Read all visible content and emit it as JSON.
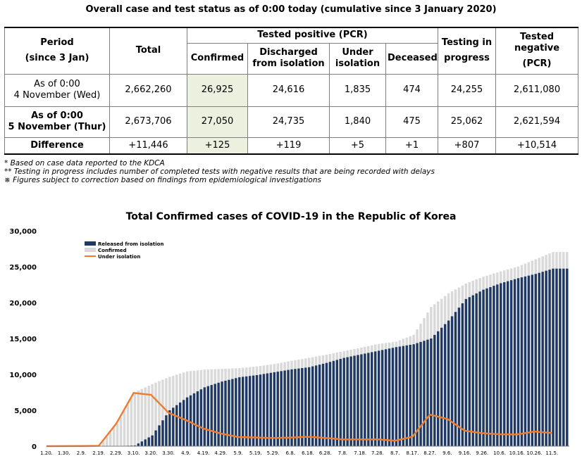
{
  "page_title": "Overall case and test status as of 0:00 today (cumulative since 3 January 2020)",
  "table": {
    "headers": {
      "period": "Period",
      "period_sub": "(since 3 Jan)",
      "total": "Total",
      "tested_positive": "Tested positive (PCR)",
      "confirmed": "Confirmed",
      "discharged": "Discharged",
      "discharged_sub": "from isolation",
      "under": "Under",
      "under_sub": "isolation",
      "deceased": "Deceased",
      "testing": "Testing in",
      "testing_sub": "progress",
      "negative": "Tested negative",
      "negative_sub": "(PCR)"
    },
    "rows": [
      {
        "label1": "As of 0:00",
        "label2": "4 November (Wed)",
        "total": "2,662,260",
        "confirmed": "26,925",
        "discharged": "24,616",
        "under": "1,835",
        "deceased": "474",
        "testing": "24,255",
        "negative": "2,611,080"
      },
      {
        "label1": "As of 0:00",
        "label2": "5 November (Thur)",
        "total": "2,673,706",
        "confirmed": "27,050",
        "discharged": "24,735",
        "under": "1,840",
        "deceased": "475",
        "testing": "25,062",
        "negative": "2,621,594"
      }
    ],
    "difference": {
      "label": "Difference",
      "total": "+11,446",
      "confirmed": "+125",
      "discharged": "+119",
      "under": "+5",
      "deceased": "+1",
      "testing": "+807",
      "negative": "+10,514"
    }
  },
  "notes": [
    "* Based on case data reported to the KDCA",
    "** Testing in progress includes number of completed tests with negative results that are being recorded with delays",
    "※ Figures subject to correction based on findings from epidemiological investigations"
  ],
  "chart_data": {
    "type": "bar",
    "title": "Total Confirmed cases of COVID-19 in the Republic of Korea",
    "xlabel": "",
    "ylabel": "",
    "ylim": [
      0,
      30000
    ],
    "yticks": [
      "0",
      "5,000",
      "10,000",
      "15,000",
      "20,000",
      "25,000",
      "30,000"
    ],
    "grid": false,
    "legend_position": "top-left",
    "categories": [
      "1.20.",
      "1.30.",
      "2.9.",
      "2.19.",
      "2.29.",
      "3.10.",
      "3.20.",
      "3.30.",
      "4.9.",
      "4.19.",
      "4.29.",
      "5.9.",
      "5.19.",
      "5.29.",
      "6.8.",
      "6.18.",
      "6.28.",
      "7.8.",
      "7.18.",
      "7.28.",
      "8.7.",
      "8.17.",
      "8.27.",
      "9.6.",
      "9.16.",
      "9.26.",
      "10.6.",
      "10.16.",
      "10.26.",
      "11.5."
    ],
    "series": [
      {
        "name": "Released from isolation",
        "kind": "bar",
        "color": "#1f3864",
        "values": [
          0,
          0,
          0,
          0,
          20,
          100,
          1500,
          5000,
          6800,
          8200,
          9000,
          9600,
          9900,
          10300,
          10700,
          11000,
          11600,
          12300,
          12800,
          13300,
          13800,
          14200,
          15000,
          17500,
          20500,
          21800,
          22700,
          23400,
          24000,
          24735
        ]
      },
      {
        "name": "Confirmed",
        "kind": "bar",
        "color": "#d9d9d9",
        "values": [
          1,
          11,
          27,
          51,
          3150,
          7513,
          8652,
          9661,
          10423,
          10661,
          10765,
          10874,
          11110,
          11441,
          11902,
          12306,
          12757,
          13244,
          13745,
          14251,
          14562,
          15515,
          19400,
          21296,
          22657,
          23611,
          24353,
          25035,
          26043,
          27050
        ]
      },
      {
        "name": "Under isolation",
        "kind": "line",
        "color": "#ed7d31",
        "values": [
          1,
          11,
          27,
          51,
          3130,
          7413,
          7152,
          4661,
          3623,
          2461,
          1765,
          1274,
          1210,
          1141,
          1202,
          1306,
          1157,
          944,
          945,
          951,
          762,
          1315,
          4400,
          3796,
          2157,
          1811,
          1653,
          1635,
          2043,
          1840
        ]
      }
    ]
  }
}
